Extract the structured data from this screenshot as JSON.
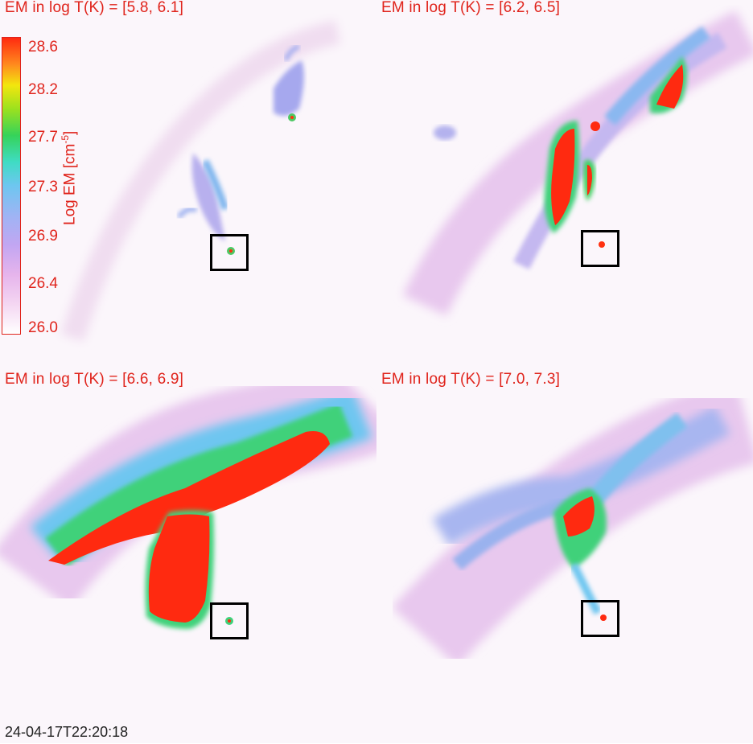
{
  "panels": [
    {
      "title": "EM in log T(K) = [5.8, 6.1]"
    },
    {
      "title": "EM in log T(K) = [6.2, 6.5]"
    },
    {
      "title": "EM in log T(K) = [6.6, 6.9]"
    },
    {
      "title": "EM in log T(K) = [7.0, 7.3]"
    }
  ],
  "colorbar": {
    "label_main": "Log EM [cm",
    "label_exp": "-5",
    "label_close": "]",
    "ticks": [
      "28.6",
      "28.2",
      "27.7",
      "27.3",
      "26.9",
      "26.4",
      "26.0"
    ]
  },
  "timestamp": "24-04-17T22:20:18",
  "colors": {
    "text": "#e0241c",
    "box": "#000000"
  }
}
